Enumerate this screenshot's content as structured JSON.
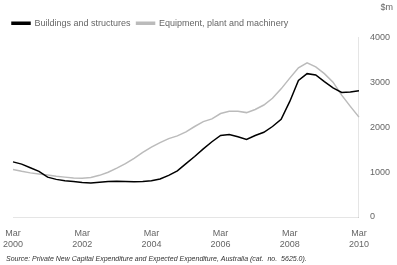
{
  "chart_data": {
    "type": "line",
    "ylabel": "$m",
    "annotations": [
      "Source: Private New Capital Expenditure and Expected Expenditure, Australia (cat.  no.  5625.0)."
    ],
    "categories": [
      "Mar\n2000",
      null,
      null,
      null,
      null,
      null,
      null,
      null,
      "Mar\n2002",
      null,
      null,
      null,
      null,
      null,
      null,
      null,
      "Mar\n2004",
      null,
      null,
      null,
      null,
      null,
      null,
      null,
      "Mar\n2006",
      null,
      null,
      null,
      null,
      null,
      null,
      null,
      "Mar\n2008",
      null,
      null,
      null,
      null,
      null,
      null,
      null,
      "Mar\n2010"
    ],
    "series": [
      {
        "name": "Buildings and structures",
        "color": "#000000",
        "values": [
          1230,
          1180,
          1100,
          1020,
          890,
          840,
          810,
          790,
          770,
          760,
          775,
          790,
          800,
          795,
          785,
          790,
          810,
          850,
          930,
          1030,
          1190,
          1350,
          1520,
          1680,
          1820,
          1840,
          1790,
          1730,
          1820,
          1890,
          2020,
          2180,
          2580,
          3050,
          3200,
          3170,
          3020,
          2880,
          2780,
          2790,
          2820
        ]
      },
      {
        "name": "Equipment, plant and machinery",
        "color": "#bbbbbb",
        "values": [
          1060,
          1020,
          985,
          960,
          935,
          910,
          890,
          870,
          865,
          880,
          930,
          1000,
          1090,
          1190,
          1310,
          1440,
          1560,
          1660,
          1750,
          1810,
          1900,
          2020,
          2130,
          2190,
          2310,
          2360,
          2360,
          2330,
          2400,
          2500,
          2650,
          2860,
          3100,
          3330,
          3440,
          3350,
          3200,
          3010,
          2720,
          2470,
          2230
        ]
      }
    ],
    "ylim": [
      0,
      4000
    ],
    "yticks": [
      0,
      1000,
      2000,
      3000,
      4000
    ],
    "grid": false,
    "legend": "upper left"
  }
}
